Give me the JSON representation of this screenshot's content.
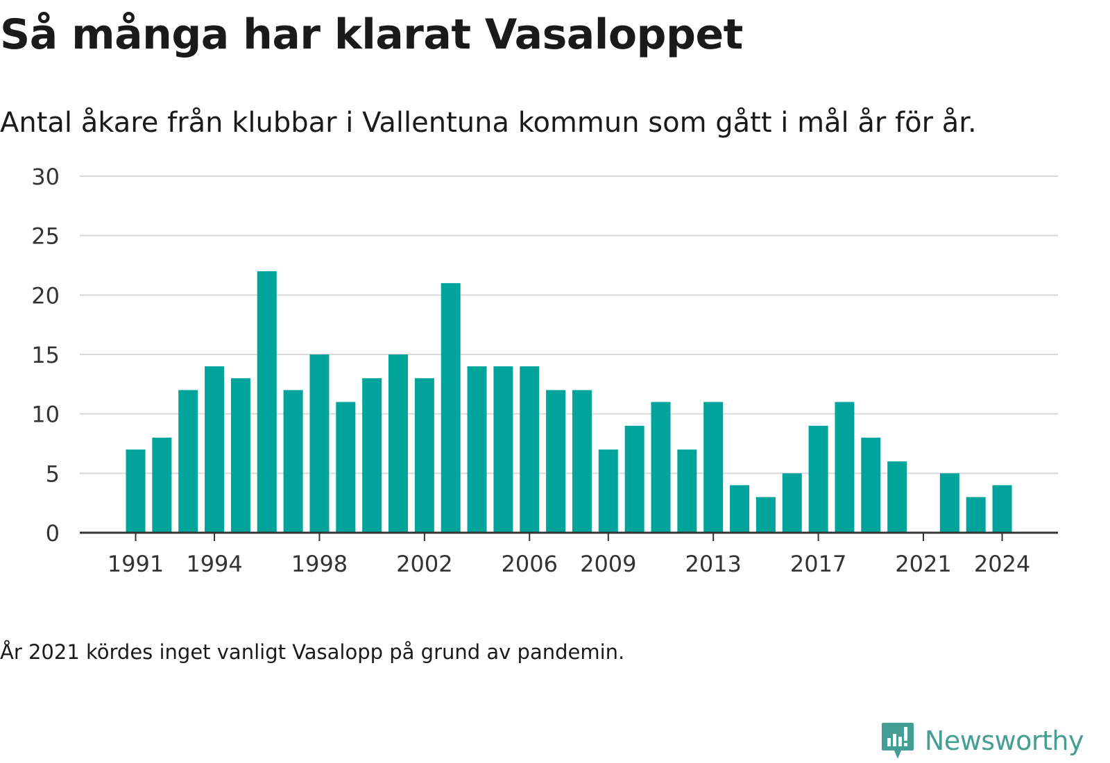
{
  "header": {
    "title": "Så många har klarat Vasaloppet",
    "subtitle": "Antal åkare från klubbar i Vallentuna kommun som gått i mål år för år."
  },
  "footer": {
    "note": "År 2021 kördes inget vanligt Vasalopp på grund av pandemin.",
    "brand": "Newsworthy"
  },
  "colors": {
    "bar": "#00a49a",
    "brand": "#459e94",
    "grid": "#d9d9d9",
    "axis": "#333333"
  },
  "chart_data": {
    "type": "bar",
    "x": [
      1991,
      1992,
      1993,
      1994,
      1995,
      1996,
      1997,
      1998,
      1999,
      2000,
      2001,
      2002,
      2003,
      2004,
      2005,
      2006,
      2007,
      2008,
      2009,
      2010,
      2011,
      2012,
      2013,
      2014,
      2015,
      2016,
      2017,
      2018,
      2019,
      2020,
      2021,
      2022,
      2023,
      2024
    ],
    "values": [
      7,
      8,
      12,
      14,
      13,
      22,
      12,
      15,
      11,
      13,
      15,
      13,
      21,
      14,
      14,
      14,
      12,
      12,
      7,
      9,
      11,
      7,
      11,
      4,
      3,
      5,
      9,
      11,
      8,
      6,
      0,
      5,
      3,
      4
    ],
    "x_ticks": [
      "1991",
      "1994",
      "1998",
      "2002",
      "2006",
      "2009",
      "2013",
      "2017",
      "2021",
      "2024"
    ],
    "y_ticks": [
      "0",
      "5",
      "10",
      "15",
      "20",
      "25",
      "30"
    ],
    "ylim": [
      0,
      30
    ],
    "grid": true,
    "legend": "none"
  }
}
